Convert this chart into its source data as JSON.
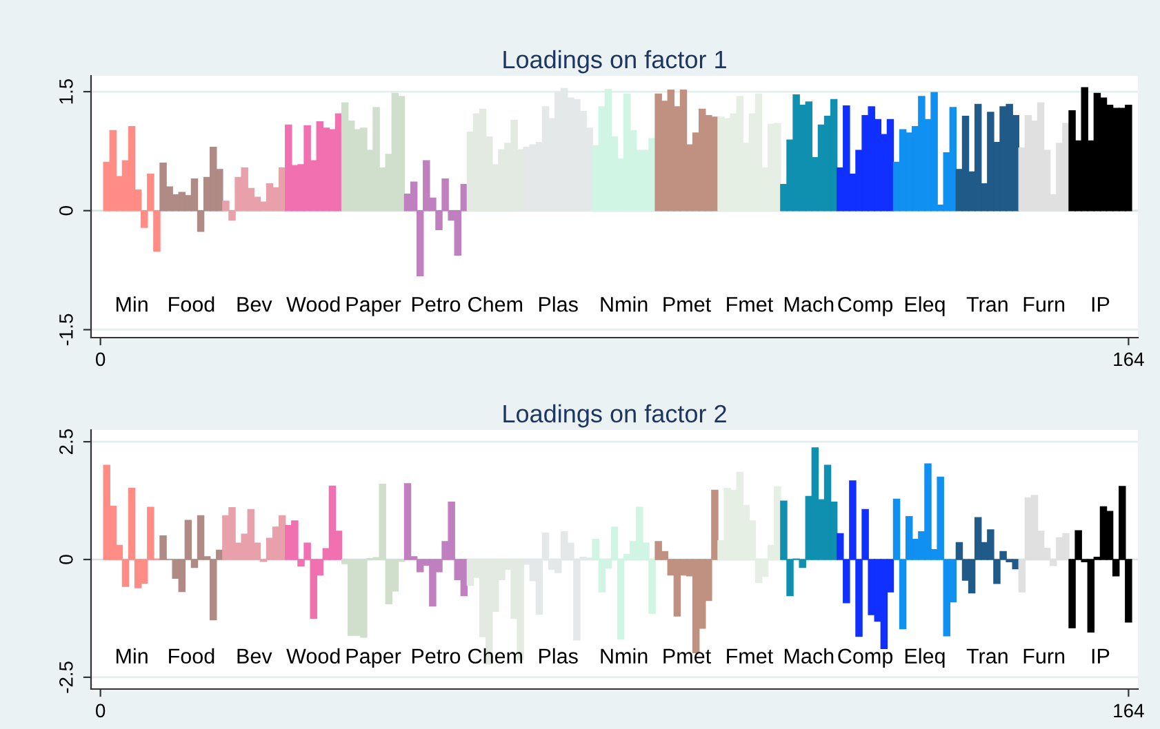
{
  "chart_data": [
    {
      "type": "bar",
      "title": "Loadings on factor 1",
      "xlim": [
        -1.5,
        165.5
      ],
      "xticks": [
        0,
        164
      ],
      "ylim": [
        -1.6,
        1.7
      ],
      "yticks": [
        1.5,
        0,
        -1.5
      ],
      "grid": "y",
      "series": [
        {
          "color": "#ff8c85",
          "x": [
            1,
            2,
            3,
            4,
            5,
            6,
            7,
            8,
            9
          ],
          "values": [
            0.61,
            1.01,
            0.43,
            0.63,
            1.06,
            0.26,
            -0.21,
            0.46,
            -0.51
          ]
        },
        {
          "color": "#b08a84",
          "x": [
            10,
            11,
            12,
            13,
            14,
            15,
            16,
            17,
            18,
            19
          ],
          "values": [
            0.6,
            0.3,
            0.2,
            0.23,
            0.19,
            0.4,
            -0.26,
            0.42,
            0.8,
            0.52
          ]
        },
        {
          "color": "#e8a0aa",
          "x": [
            20,
            21,
            22,
            23,
            24,
            25,
            26,
            27,
            28,
            29
          ],
          "values": [
            0.12,
            -0.12,
            0.42,
            0.54,
            0.28,
            0.17,
            0.11,
            0.34,
            0.29,
            0.54
          ]
        },
        {
          "color": "#f070b0",
          "x": [
            30,
            31,
            32,
            33,
            34,
            35,
            36,
            37,
            38
          ],
          "values": [
            1.08,
            0.57,
            0.58,
            1.07,
            0.63,
            1.12,
            1.04,
            1.02,
            1.22
          ]
        },
        {
          "color": "#cfdfcc",
          "x": [
            39,
            40,
            41,
            42,
            43,
            44,
            45,
            46,
            47,
            48
          ],
          "values": [
            1.36,
            1.13,
            1.02,
            1.04,
            0.76,
            1.3,
            0.54,
            0.71,
            1.48,
            1.44
          ]
        },
        {
          "color": "#c080c0",
          "x": [
            49,
            50,
            51,
            52,
            53,
            54,
            55,
            56,
            57,
            58
          ],
          "values": [
            0.21,
            0.36,
            -0.82,
            0.63,
            0.16,
            -0.24,
            0.4,
            -0.12,
            -0.56,
            0.33
          ]
        },
        {
          "color": "#e2eae2",
          "x": [
            59,
            60,
            61,
            62,
            63,
            64,
            65,
            66,
            67
          ],
          "values": [
            0.99,
            1.22,
            1.28,
            0.93,
            0.58,
            0.77,
            0.85,
            1.14,
            0.77
          ]
        },
        {
          "color": "#e4e8e8",
          "x": [
            68,
            69,
            70,
            71,
            72,
            73,
            74,
            75,
            76,
            77,
            78
          ],
          "values": [
            0.8,
            0.83,
            0.86,
            1.31,
            1.16,
            1.49,
            1.54,
            1.42,
            1.4,
            1.25,
            1.04
          ]
        },
        {
          "color": "#d0f5e5",
          "x": [
            79,
            80,
            81,
            82,
            83,
            84,
            85,
            86,
            87,
            88
          ],
          "values": [
            0.82,
            1.31,
            1.53,
            0.93,
            0.65,
            1.47,
            1.01,
            0.76,
            0.76,
            0.91
          ]
        },
        {
          "color": "#c09080",
          "x": [
            89,
            90,
            91,
            92,
            93,
            94,
            95,
            96,
            97,
            98
          ],
          "values": [
            1.47,
            1.38,
            1.52,
            1.31,
            1.52,
            0.83,
            0.98,
            1.28,
            1.2,
            1.18
          ]
        },
        {
          "color": "#e6efe4",
          "x": [
            99,
            100,
            101,
            102,
            103,
            104,
            105,
            106,
            107,
            108
          ],
          "values": [
            1.18,
            1.16,
            1.22,
            1.44,
            0.85,
            1.22,
            1.47,
            0.54,
            1.09,
            1.1
          ]
        },
        {
          "color": "#1090b0",
          "x": [
            109,
            110,
            111,
            112,
            113,
            114,
            115,
            116,
            117
          ],
          "values": [
            0.33,
            0.89,
            1.46,
            1.33,
            1.37,
            0.67,
            1.08,
            1.19,
            1.4
          ]
        },
        {
          "color": "#1030ff",
          "x": [
            118,
            119,
            120,
            121,
            122,
            123,
            124,
            125,
            126
          ],
          "values": [
            0.54,
            1.32,
            0.46,
            0.76,
            1.2,
            1.31,
            1.15,
            0.96,
            1.15
          ]
        },
        {
          "color": "#1090f0",
          "x": [
            127,
            128,
            129,
            130,
            131,
            132,
            133,
            134,
            135,
            136
          ],
          "values": [
            0.61,
            1.02,
            0.98,
            1.06,
            1.44,
            1.15,
            1.49,
            0.07,
            0.73,
            1.3
          ]
        },
        {
          "color": "#205a88",
          "x": [
            137,
            138,
            139,
            140,
            141,
            142,
            143,
            144,
            145,
            146
          ],
          "values": [
            0.52,
            1.19,
            0.49,
            1.34,
            0.34,
            1.24,
            0.86,
            1.31,
            1.34,
            1.2
          ]
        },
        {
          "color": "#e0e0e0",
          "x": [
            147,
            148,
            149,
            150,
            151,
            152,
            153,
            154
          ],
          "values": [
            0.79,
            1.2,
            1.13,
            1.36,
            0.76,
            0.2,
            0.85,
            1.1
          ]
        },
        {
          "color": "#000000",
          "x": [
            155,
            156,
            157,
            158,
            159,
            160,
            161,
            162,
            163,
            164
          ],
          "values": [
            1.26,
            0.88,
            1.55,
            0.88,
            1.48,
            1.42,
            1.33,
            1.29,
            1.29,
            1.33
          ]
        }
      ],
      "annotations": [
        "Min",
        "Food",
        "Bev",
        "Wood",
        "Paper",
        "Petro",
        "Chem",
        "Plas",
        "Nmin",
        "Pmet",
        "Fmet",
        "Mach",
        "Comp",
        "Eleq",
        "Tran",
        "Furn",
        "IP"
      ]
    },
    {
      "type": "bar",
      "title": "Loadings on factor 2",
      "xlim": [
        -1.5,
        165.5
      ],
      "xticks": [
        0,
        164
      ],
      "ylim": [
        -2.75,
        2.75
      ],
      "yticks": [
        2.5,
        0,
        -2.5
      ],
      "grid": "y",
      "series": [
        {
          "color": "#ff8c85",
          "x": [
            1,
            2,
            3,
            4,
            5,
            6,
            7,
            8,
            9
          ],
          "values": [
            2.0,
            1.13,
            0.3,
            -0.57,
            1.51,
            -0.6,
            -0.5,
            1.11,
            0.01
          ]
        },
        {
          "color": "#b08a84",
          "x": [
            10,
            11,
            12,
            13,
            14,
            15,
            16,
            17,
            18,
            19
          ],
          "values": [
            0.5,
            0.0,
            -0.4,
            -0.68,
            0.83,
            -0.17,
            0.93,
            0.06,
            -1.28,
            0.2
          ]
        },
        {
          "color": "#e8a0aa",
          "x": [
            20,
            21,
            22,
            23,
            24,
            25,
            26,
            27,
            28,
            29
          ],
          "values": [
            0.93,
            1.1,
            0.35,
            0.54,
            1.06,
            0.35,
            -0.04,
            0.45,
            0.69,
            0.93
          ]
        },
        {
          "color": "#f070b0",
          "x": [
            30,
            31,
            32,
            33,
            34,
            35,
            36,
            37,
            38
          ],
          "values": [
            0.72,
            0.82,
            -0.14,
            0.35,
            -1.25,
            -0.33,
            0.23,
            1.56,
            0.6
          ]
        },
        {
          "color": "#cfdfcc",
          "x": [
            39,
            40,
            41,
            42,
            43,
            44,
            45,
            46,
            47,
            48
          ],
          "values": [
            -0.09,
            -1.61,
            -1.61,
            -1.65,
            0.02,
            0.04,
            1.6,
            -0.94,
            -0.67,
            -0.04
          ]
        },
        {
          "color": "#c080c0",
          "x": [
            49,
            50,
            51,
            52,
            53,
            54,
            55,
            56,
            57,
            58
          ],
          "values": [
            1.61,
            0.06,
            -0.26,
            -0.12,
            -0.99,
            -0.26,
            0.38,
            1.22,
            -0.43,
            -0.77
          ]
        },
        {
          "color": "#e2eae2",
          "x": [
            59,
            60,
            61,
            62,
            63,
            64,
            65,
            66,
            67
          ],
          "values": [
            -0.55,
            -0.38,
            -1.64,
            -2.22,
            -1.1,
            -0.43,
            -0.21,
            -1.25,
            -2.13
          ]
        },
        {
          "color": "#e4e8e8",
          "x": [
            68,
            69,
            70,
            71,
            72,
            73,
            74,
            75,
            76,
            77,
            78
          ],
          "values": [
            -0.1,
            -0.45,
            -1.16,
            0.56,
            -0.21,
            -0.28,
            0.59,
            0.35,
            -1.71,
            0.05,
            0.03
          ]
        },
        {
          "color": "#d0f5e5",
          "x": [
            79,
            80,
            81,
            82,
            83,
            84,
            85,
            86,
            87,
            88
          ],
          "values": [
            0.43,
            -0.69,
            -0.18,
            0.69,
            -1.69,
            0.11,
            0.38,
            1.11,
            0.35,
            -1.14
          ]
        },
        {
          "color": "#c09080",
          "x": [
            89,
            90,
            91,
            92,
            93,
            94,
            95,
            96,
            97,
            98
          ],
          "values": [
            0.38,
            0.17,
            -0.33,
            -1.2,
            -0.33,
            -0.35,
            -1.98,
            -1.46,
            -0.87,
            1.47
          ]
        },
        {
          "color": "#e6efe4",
          "x": [
            99,
            100,
            101,
            102,
            103,
            104,
            105,
            106,
            107,
            108
          ],
          "values": [
            0.4,
            1.51,
            1.47,
            1.85,
            1.15,
            0.82,
            -0.49,
            -0.36,
            0.3,
            1.54
          ]
        },
        {
          "color": "#1090b0",
          "x": [
            109,
            110,
            111,
            112,
            113,
            114,
            115,
            116,
            117
          ],
          "values": [
            1.24,
            -0.77,
            0.01,
            -0.17,
            1.34,
            2.37,
            1.27,
            2.0,
            1.22
          ]
        },
        {
          "color": "#1030ff",
          "x": [
            118,
            119,
            120,
            121,
            122,
            123,
            124,
            125,
            126
          ],
          "values": [
            0.55,
            -0.92,
            1.67,
            -1.63,
            1.06,
            -1.17,
            -1.31,
            -1.89,
            -0.69
          ]
        },
        {
          "color": "#1090f0",
          "x": [
            127,
            128,
            129,
            130,
            131,
            132,
            133,
            134,
            135,
            136
          ],
          "values": [
            1.28,
            -1.47,
            0.91,
            0.43,
            0.59,
            2.03,
            0.21,
            1.75,
            -1.62,
            -0.9
          ]
        },
        {
          "color": "#205a88",
          "x": [
            137,
            138,
            139,
            140,
            141,
            142,
            143,
            144,
            145,
            146
          ],
          "values": [
            0.36,
            -0.44,
            -0.71,
            0.89,
            0.36,
            0.63,
            -0.51,
            0.17,
            -0.05,
            -0.2
          ]
        },
        {
          "color": "#e0e0e0",
          "x": [
            147,
            148,
            149,
            150,
            151,
            152,
            153,
            154
          ],
          "values": [
            -0.69,
            1.31,
            1.36,
            0.6,
            0.24,
            -0.13,
            0.46,
            0.55
          ]
        },
        {
          "color": "#000000",
          "x": [
            155,
            156,
            157,
            158,
            159,
            160,
            161,
            162,
            163,
            164
          ],
          "values": [
            -1.45,
            0.61,
            -0.05,
            -1.54,
            0.05,
            1.12,
            1.02,
            -0.35,
            1.55,
            -1.33
          ]
        }
      ],
      "annotations": [
        "Min",
        "Food",
        "Bev",
        "Wood",
        "Paper",
        "Petro",
        "Chem",
        "Plas",
        "Nmin",
        "Pmet",
        "Fmet",
        "Mach",
        "Comp",
        "Eleq",
        "Tran",
        "Furn",
        "IP"
      ]
    }
  ]
}
